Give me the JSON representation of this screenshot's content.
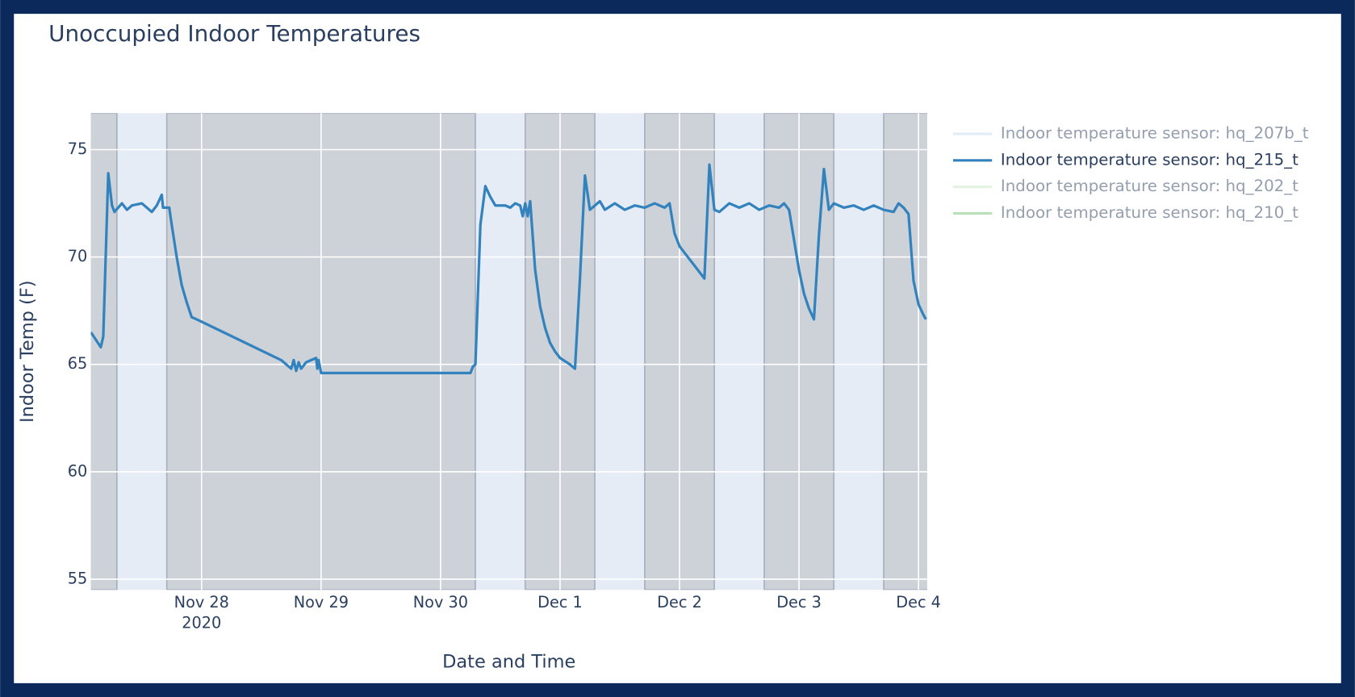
{
  "chart_data": {
    "type": "line",
    "title": "Unoccupied Indoor Temperatures",
    "x_label": "Date and Time",
    "y_label": "Indoor Temp (F)",
    "xlim": [
      "2020-11-27T01:45",
      "2020-12-04T01:45"
    ],
    "xticks": [
      {
        "value": "2020-11-28T00:00",
        "label": "Nov 28"
      },
      {
        "value": "2020-11-29T00:00",
        "label": "Nov 29"
      },
      {
        "value": "2020-11-30T00:00",
        "label": "Nov 30"
      },
      {
        "value": "2020-12-01T00:00",
        "label": "Dec 1"
      },
      {
        "value": "2020-12-02T00:00",
        "label": "Dec 2"
      },
      {
        "value": "2020-12-03T00:00",
        "label": "Dec 3"
      },
      {
        "value": "2020-12-04T00:00",
        "label": "Dec 4"
      }
    ],
    "xtick_year": "2020",
    "ylim": [
      54.5,
      76.7
    ],
    "yticks": [
      55,
      60,
      65,
      70,
      75
    ],
    "grid": true,
    "shaded_periods": [
      [
        "2020-11-26T17:00",
        "2020-11-27T07:00"
      ],
      [
        "2020-11-27T17:00",
        "2020-11-30T07:00"
      ],
      [
        "2020-11-30T17:00",
        "2020-12-01T07:00"
      ],
      [
        "2020-12-01T17:00",
        "2020-12-02T07:00"
      ],
      [
        "2020-12-02T17:00",
        "2020-12-03T07:00"
      ],
      [
        "2020-12-03T17:00",
        "2020-12-04T07:00"
      ]
    ],
    "x": [
      "2020-11-27T01:45",
      "2020-11-27T03:45",
      "2020-11-27T04:15",
      "2020-11-27T05:15",
      "2020-11-27T06:00",
      "2020-11-27T06:30",
      "2020-11-27T08:00",
      "2020-11-27T09:00",
      "2020-11-27T10:00",
      "2020-11-27T12:00",
      "2020-11-27T14:00",
      "2020-11-27T15:00",
      "2020-11-27T16:00",
      "2020-11-27T16:15",
      "2020-11-27T17:30",
      "2020-11-27T18:00",
      "2020-11-27T19:00",
      "2020-11-27T20:00",
      "2020-11-27T21:00",
      "2020-11-27T22:00",
      "2020-11-27T23:00",
      "2020-11-28T16:00",
      "2020-11-28T18:00",
      "2020-11-28T18:30",
      "2020-11-28T19:00",
      "2020-11-28T19:30",
      "2020-11-28T20:00",
      "2020-11-28T21:00",
      "2020-11-28T22:00",
      "2020-11-28T23:00",
      "2020-11-28T23:15",
      "2020-11-28T23:30",
      "2020-11-29T00:00",
      "2020-11-30T06:00",
      "2020-11-30T06:30",
      "2020-11-30T07:00",
      "2020-11-30T08:00",
      "2020-11-30T09:00",
      "2020-11-30T10:00",
      "2020-11-30T11:00",
      "2020-11-30T13:00",
      "2020-11-30T14:00",
      "2020-11-30T15:00",
      "2020-11-30T16:00",
      "2020-11-30T16:30",
      "2020-11-30T17:00",
      "2020-11-30T17:30",
      "2020-11-30T18:00",
      "2020-11-30T19:00",
      "2020-11-30T20:00",
      "2020-11-30T21:00",
      "2020-11-30T22:00",
      "2020-11-30T23:00",
      "2020-12-01T00:00",
      "2020-12-01T02:00",
      "2020-12-01T03:00",
      "2020-12-01T04:00",
      "2020-12-01T05:00",
      "2020-12-01T06:00",
      "2020-12-01T07:00",
      "2020-12-01T08:00",
      "2020-12-01T09:00",
      "2020-12-01T11:00",
      "2020-12-01T13:00",
      "2020-12-01T15:00",
      "2020-12-01T17:00",
      "2020-12-01T19:00",
      "2020-12-01T21:00",
      "2020-12-01T22:00",
      "2020-12-01T23:00",
      "2020-12-02T00:00",
      "2020-12-02T03:00",
      "2020-12-02T05:00",
      "2020-12-02T06:00",
      "2020-12-02T07:00",
      "2020-12-02T08:00",
      "2020-12-02T10:00",
      "2020-12-02T12:00",
      "2020-12-02T14:00",
      "2020-12-02T16:00",
      "2020-12-02T18:00",
      "2020-12-02T20:00",
      "2020-12-02T21:00",
      "2020-12-02T22:00",
      "2020-12-02T23:00",
      "2020-12-03T00:00",
      "2020-12-03T01:00",
      "2020-12-03T02:00",
      "2020-12-03T03:00",
      "2020-12-03T04:00",
      "2020-12-03T05:00",
      "2020-12-03T06:00",
      "2020-12-03T07:00",
      "2020-12-03T09:00",
      "2020-12-03T11:00",
      "2020-12-03T13:00",
      "2020-12-03T15:00",
      "2020-12-03T17:00",
      "2020-12-03T19:00",
      "2020-12-03T20:00",
      "2020-12-03T21:00",
      "2020-12-03T22:00",
      "2020-12-03T23:00",
      "2020-12-04T00:00",
      "2020-12-04T01:00",
      "2020-12-04T01:30"
    ],
    "series": [
      {
        "name": "Indoor temperature sensor: hq_215_t",
        "color": "#3182bd",
        "values": [
          66.5,
          65.8,
          66.3,
          73.9,
          72.4,
          72.1,
          72.5,
          72.2,
          72.4,
          72.5,
          72.1,
          72.4,
          72.9,
          72.3,
          72.3,
          71.5,
          70.0,
          68.7,
          67.9,
          67.2,
          67.1,
          65.2,
          64.8,
          65.2,
          64.7,
          65.1,
          64.8,
          65.1,
          65.2,
          65.3,
          64.8,
          65.2,
          64.6,
          64.6,
          64.9,
          65.0,
          71.5,
          73.3,
          72.8,
          72.4,
          72.4,
          72.3,
          72.5,
          72.4,
          71.9,
          72.5,
          71.9,
          72.6,
          69.4,
          67.7,
          66.7,
          66.0,
          65.6,
          65.3,
          65.0,
          64.8,
          69.0,
          73.8,
          72.2,
          72.4,
          72.6,
          72.2,
          72.5,
          72.2,
          72.4,
          72.3,
          72.5,
          72.3,
          72.5,
          71.1,
          70.5,
          69.6,
          69.0,
          74.3,
          72.2,
          72.1,
          72.5,
          72.3,
          72.5,
          72.2,
          72.4,
          72.3,
          72.5,
          72.2,
          70.8,
          69.4,
          68.3,
          67.6,
          67.1,
          71.0,
          74.1,
          72.2,
          72.5,
          72.3,
          72.4,
          72.2,
          72.4,
          72.2,
          72.1,
          72.5,
          72.3,
          72.0,
          68.9,
          67.8,
          67.3,
          67.1
        ]
      }
    ],
    "legend": [
      {
        "name": "Indoor temperature sensor: hq_207b_t",
        "color": "#c6dbef",
        "visible": false
      },
      {
        "name": "Indoor temperature sensor: hq_215_t",
        "color": "#3182bd",
        "visible": true
      },
      {
        "name": "Indoor temperature sensor: hq_202_t",
        "color": "#c7e9c0",
        "visible": false
      },
      {
        "name": "Indoor temperature sensor: hq_210_t",
        "color": "#74c476",
        "visible": false
      }
    ],
    "legend_position": "right"
  }
}
